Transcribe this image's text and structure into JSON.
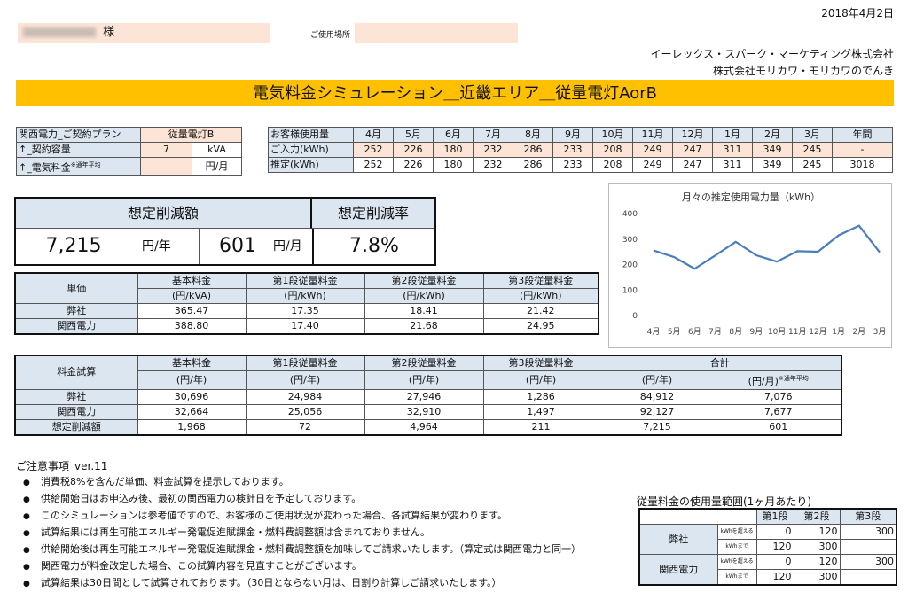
{
  "header": {
    "date": "2018年4月2日",
    "customer_suffix": "様",
    "location_label": "ご使用場所",
    "company1": "イーレックス・スパーク・マーケティング株式会社",
    "company2": "株式会社モリカワ・モリカワのでんき"
  },
  "title": "電気料金シミュレーション＿近畿エリア＿従量電灯AorB",
  "plan": {
    "label": "関西電力_ご契約プラン",
    "value": "従量電灯B",
    "capacity_label": "↑_契約容量",
    "capacity_value": "7",
    "capacity_unit": "kVA",
    "fee_label": "↑_電気料金",
    "fee_note": "※通年平均",
    "fee_value": "",
    "fee_unit": "円/月"
  },
  "usage": {
    "header_label": "お客様使用量",
    "months": [
      "4月",
      "5月",
      "6月",
      "7月",
      "8月",
      "9月",
      "10月",
      "11月",
      "12月",
      "1月",
      "2月",
      "3月",
      "年間"
    ],
    "input_label": "ご入力(kWh)",
    "input": [
      "252",
      "226",
      "180",
      "232",
      "286",
      "233",
      "208",
      "249",
      "247",
      "311",
      "349",
      "245",
      "-"
    ],
    "est_label": "推定(kWh)",
    "est": [
      "252",
      "226",
      "180",
      "232",
      "286",
      "233",
      "208",
      "249",
      "247",
      "311",
      "349",
      "245",
      "3018"
    ]
  },
  "savings": {
    "amount_label": "想定削減額",
    "rate_label": "想定削減率",
    "yearly": "7,215",
    "yearly_unit": "円/年",
    "monthly": "601",
    "monthly_unit": "円/月",
    "rate": "7.8%"
  },
  "unit_price": {
    "head": "単価",
    "cols": [
      "基本料金",
      "第1段従量料金",
      "第2段従量料金",
      "第3段従量料金"
    ],
    "units": [
      "(円/kVA)",
      "(円/kWh)",
      "(円/kWh)",
      "(円/kWh)"
    ],
    "rows": [
      {
        "label": "弊社",
        "vals": [
          "365.47",
          "17.35",
          "18.41",
          "21.42"
        ]
      },
      {
        "label": "関西電力",
        "vals": [
          "388.80",
          "17.40",
          "21.68",
          "24.95"
        ]
      }
    ]
  },
  "trial": {
    "head": "料金試算",
    "cols": [
      "基本料金",
      "第1段従量料金",
      "第2段従量料金",
      "第3段従量料金",
      "合計"
    ],
    "units": [
      "(円/年)",
      "(円/年)",
      "(円/年)",
      "(円/年)",
      "(円/年)",
      "(円/月)"
    ],
    "avg_note": "※通年平均",
    "rows": [
      {
        "label": "弊社",
        "vals": [
          "30,696",
          "24,984",
          "27,946",
          "1,286",
          "84,912",
          "7,076"
        ]
      },
      {
        "label": "関西電力",
        "vals": [
          "32,664",
          "25,056",
          "32,910",
          "1,497",
          "92,127",
          "7,677"
        ]
      },
      {
        "label": "想定削減額",
        "vals": [
          "1,968",
          "72",
          "4,964",
          "211",
          "7,215",
          "601"
        ]
      }
    ]
  },
  "notes": {
    "title": "ご注意事項_ver.11",
    "bullet": "●",
    "items": [
      "消費税8%を含んだ単価、料金試算を提示しております。",
      "供給開始日はお申込み後、最初の関西電力の検針日を予定しております。",
      "このシミュレーションは参考値ですので、お客様のご使用状況が変わった場合、各試算結果が変わります。",
      "試算結果には再生可能エネルギー発電促進賦課金・燃料費調整額は含まれておりません。",
      "供給開始後は再生可能エネルギー発電促進賦課金・燃料費調整額を加味してご請求いたします。（算定式は関西電力と同一）",
      "関西電力が料金改定した場合、この試算内容を見直すことがございます。",
      "試算結果は30日間として試算されております。（30日とならない月は、日割り計算しご請求いたします。）"
    ]
  },
  "range": {
    "title": "従量料金の使用量範囲(1ヶ月あたり)",
    "cols": [
      "第1段",
      "第2段",
      "第3段"
    ],
    "over_label": "kWhを超える",
    "upto_label": "kWhまで",
    "rows": [
      {
        "label": "弊社",
        "over": [
          "0",
          "120",
          "300"
        ],
        "upto": [
          "120",
          "300",
          ""
        ]
      },
      {
        "label": "関西電力",
        "over": [
          "0",
          "120",
          "300"
        ],
        "upto": [
          "120",
          "300",
          ""
        ]
      }
    ]
  },
  "chart_data": {
    "type": "line",
    "title": "月々の推定使用電力量（kWh）",
    "categories": [
      "4月",
      "5月",
      "6月",
      "7月",
      "8月",
      "9月",
      "10月",
      "11月",
      "12月",
      "1月",
      "2月",
      "3月"
    ],
    "values": [
      252,
      226,
      180,
      232,
      286,
      233,
      208,
      249,
      247,
      311,
      349,
      245
    ],
    "ylim": [
      0,
      400
    ],
    "yticks": [
      0,
      100,
      200,
      300,
      400
    ],
    "color": "#4a7ebb",
    "grid": false,
    "legend": "none"
  },
  "colors": {
    "title_bar": "#ffc000",
    "blue_cell": "#dce6f1",
    "peach_cell": "#fce4d6"
  }
}
